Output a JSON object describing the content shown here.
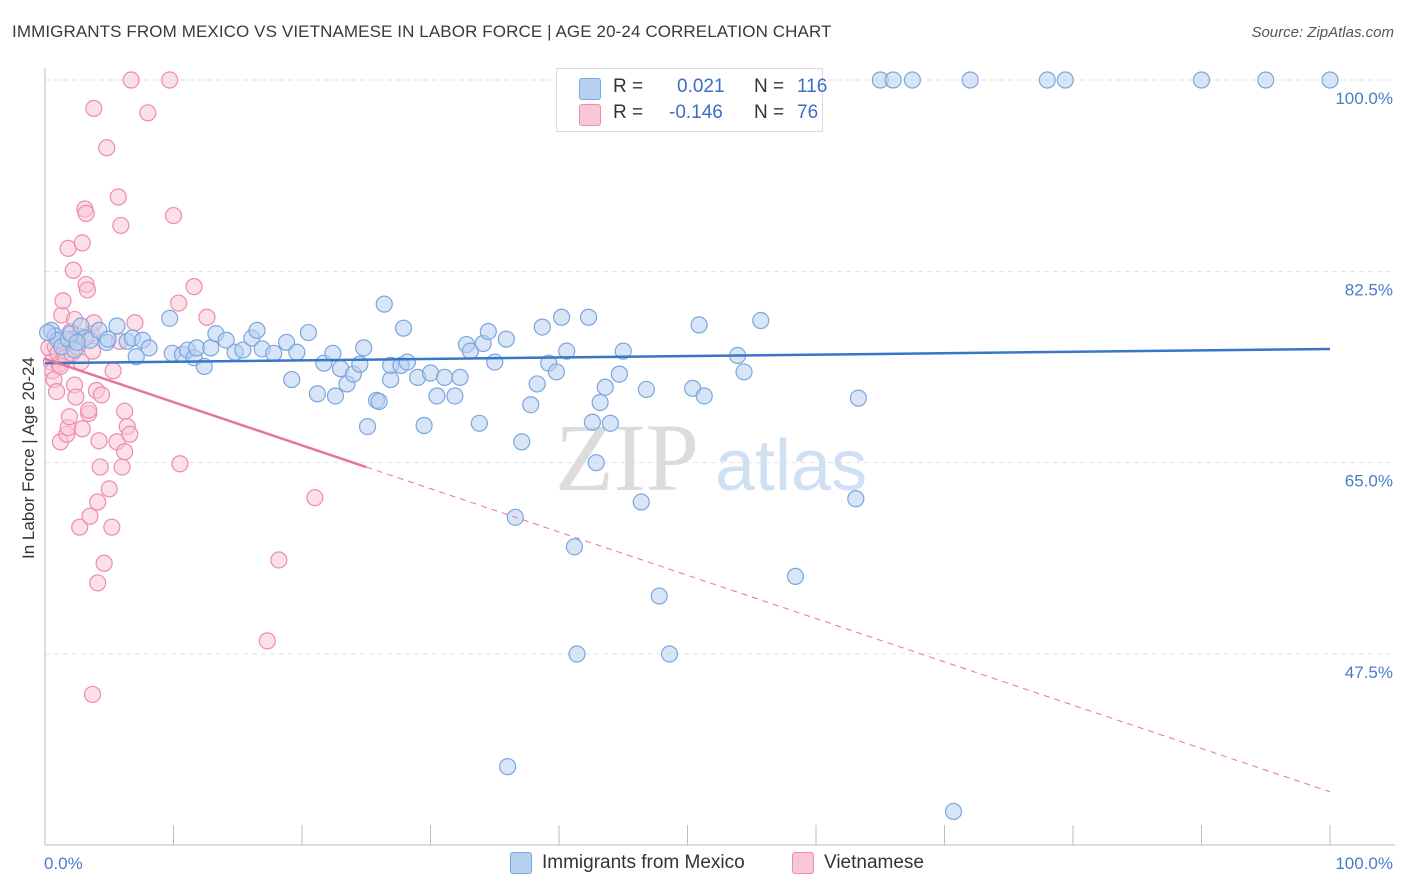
{
  "title": "IMMIGRANTS FROM MEXICO VS VIETNAMESE IN LABOR FORCE | AGE 20-24 CORRELATION CHART",
  "source": "Source: ZipAtlas.com",
  "watermark": {
    "zip": "ZIP",
    "atlas": "atlas"
  },
  "colors": {
    "blue": "#7aa6e0",
    "blue_fill": "#b8d0f0",
    "blue_line": "#3a76c8",
    "pink": "#f08aae",
    "pink_fill": "#f8c6d6",
    "pink_line": "#e8739c",
    "tick": "#4a7cc7"
  },
  "legend": {
    "rows": [
      {
        "r_label": "R =",
        "r_value": "0.021",
        "n_label": "N =",
        "n_value": "116"
      },
      {
        "r_label": "R =",
        "r_value": "-0.146",
        "n_label": "N =",
        "n_value": "76"
      }
    ]
  },
  "bottom_legend": [
    {
      "label": "Immigrants from Mexico"
    },
    {
      "label": "Vietnamese"
    }
  ],
  "chart_data": {
    "type": "scatter",
    "title": "IMMIGRANTS FROM MEXICO VS VIETNAMESE IN LABOR FORCE | AGE 20-24 CORRELATION CHART",
    "xlabel": "",
    "ylabel": "In Labor Force | Age 20-24",
    "xlim": [
      0,
      100
    ],
    "ylim": [
      30,
      101.5
    ],
    "x_tick_labels": [
      "0.0%",
      "100.0%"
    ],
    "y_ticks": [
      47.5,
      65.0,
      82.5,
      100.0
    ],
    "y_tick_labels": [
      "47.5%",
      "65.0%",
      "82.5%",
      "100.0%"
    ],
    "grid": true,
    "series": [
      {
        "name": "Immigrants from Mexico",
        "trend": {
          "x": [
            0,
            100
          ],
          "y": [
            74.1,
            75.4
          ]
        },
        "points": [
          [
            0.5,
            77.1
          ],
          [
            0.8,
            76.6
          ],
          [
            1.0,
            76.2
          ],
          [
            1.3,
            75.6
          ],
          [
            1.8,
            76.3
          ],
          [
            2.0,
            76.8
          ],
          [
            2.3,
            75.3
          ],
          [
            2.8,
            77.5
          ],
          [
            3.1,
            76.4
          ],
          [
            3.5,
            76.2
          ],
          [
            4.2,
            77.1
          ],
          [
            4.8,
            76.0
          ],
          [
            5.6,
            77.5
          ],
          [
            6.4,
            76.1
          ],
          [
            6.8,
            76.4
          ],
          [
            7.1,
            74.7
          ],
          [
            7.6,
            76.2
          ],
          [
            8.1,
            75.5
          ],
          [
            9.7,
            78.2
          ],
          [
            9.9,
            75.0
          ],
          [
            10.7,
            74.9
          ],
          [
            11.1,
            75.3
          ],
          [
            11.6,
            74.6
          ],
          [
            11.8,
            75.5
          ],
          [
            12.4,
            73.8
          ],
          [
            12.9,
            75.5
          ],
          [
            13.3,
            76.8
          ],
          [
            14.1,
            76.2
          ],
          [
            14.8,
            75.1
          ],
          [
            15.4,
            75.3
          ],
          [
            16.1,
            76.4
          ],
          [
            16.5,
            77.1
          ],
          [
            16.9,
            75.4
          ],
          [
            17.8,
            75.0
          ],
          [
            18.8,
            76.0
          ],
          [
            19.2,
            72.6
          ],
          [
            19.6,
            75.1
          ],
          [
            20.5,
            76.9
          ],
          [
            21.2,
            71.3
          ],
          [
            21.7,
            74.1
          ],
          [
            22.4,
            75.0
          ],
          [
            22.6,
            71.1
          ],
          [
            23.0,
            73.6
          ],
          [
            23.5,
            72.2
          ],
          [
            24.0,
            73.1
          ],
          [
            24.5,
            74.0
          ],
          [
            24.8,
            75.5
          ],
          [
            25.1,
            68.3
          ],
          [
            25.8,
            70.7
          ],
          [
            26.0,
            70.6
          ],
          [
            26.4,
            79.5
          ],
          [
            26.9,
            72.6
          ],
          [
            26.9,
            73.9
          ],
          [
            27.7,
            73.9
          ],
          [
            27.9,
            77.3
          ],
          [
            28.2,
            74.2
          ],
          [
            29.0,
            72.8
          ],
          [
            29.5,
            68.4
          ],
          [
            30.0,
            73.2
          ],
          [
            30.5,
            71.1
          ],
          [
            31.1,
            72.8
          ],
          [
            31.9,
            71.1
          ],
          [
            32.3,
            72.8
          ],
          [
            32.8,
            75.8
          ],
          [
            33.1,
            75.2
          ],
          [
            33.8,
            68.6
          ],
          [
            34.1,
            75.9
          ],
          [
            34.5,
            77.0
          ],
          [
            35.0,
            74.2
          ],
          [
            35.9,
            76.3
          ],
          [
            36.6,
            60.0
          ],
          [
            37.1,
            66.9
          ],
          [
            37.8,
            70.3
          ],
          [
            38.3,
            72.2
          ],
          [
            38.7,
            77.4
          ],
          [
            39.2,
            74.1
          ],
          [
            39.8,
            73.3
          ],
          [
            40.2,
            78.3
          ],
          [
            40.6,
            75.2
          ],
          [
            41.2,
            57.3
          ],
          [
            41.4,
            47.5
          ],
          [
            42.3,
            78.3
          ],
          [
            42.6,
            68.7
          ],
          [
            42.9,
            65.0
          ],
          [
            43.2,
            70.5
          ],
          [
            43.6,
            71.9
          ],
          [
            44.0,
            68.6
          ],
          [
            44.7,
            73.1
          ],
          [
            45.0,
            75.2
          ],
          [
            46.4,
            61.4
          ],
          [
            46.8,
            71.7
          ],
          [
            47.8,
            52.8
          ],
          [
            48.6,
            47.5
          ],
          [
            50.4,
            71.8
          ],
          [
            50.9,
            77.6
          ],
          [
            51.3,
            71.1
          ],
          [
            53.9,
            74.8
          ],
          [
            54.4,
            73.3
          ],
          [
            55.7,
            78.0
          ],
          [
            58.4,
            54.6
          ],
          [
            63.1,
            61.7
          ],
          [
            63.3,
            70.9
          ],
          [
            70.7,
            33.1
          ],
          [
            100.0,
            100.0
          ],
          [
            65.0,
            100.0
          ],
          [
            66.0,
            100.0
          ],
          [
            67.5,
            100.0
          ],
          [
            72.0,
            100.0
          ],
          [
            78.0,
            100.0
          ],
          [
            79.4,
            100.0
          ],
          [
            90.0,
            100.0
          ],
          [
            95.0,
            100.0
          ],
          [
            36.0,
            37.2
          ],
          [
            0.2,
            76.9
          ],
          [
            2.5,
            76.0
          ],
          [
            4.9,
            76.3
          ]
        ]
      },
      {
        "name": "Vietnamese",
        "trend": {
          "x": [
            0,
            25
          ],
          "y": [
            74.5,
            64.6
          ]
        },
        "trend_extension": {
          "x": [
            25,
            100
          ],
          "y": [
            64.6,
            34.9
          ]
        },
        "points": [
          [
            0.3,
            75.5
          ],
          [
            0.5,
            74.2
          ],
          [
            0.6,
            73.4
          ],
          [
            0.7,
            72.6
          ],
          [
            0.8,
            75.6
          ],
          [
            0.9,
            71.5
          ],
          [
            1.0,
            75.0
          ],
          [
            1.1,
            74.0
          ],
          [
            1.2,
            73.8
          ],
          [
            1.2,
            66.9
          ],
          [
            1.3,
            78.5
          ],
          [
            1.3,
            76.0
          ],
          [
            1.4,
            79.8
          ],
          [
            1.5,
            75.2
          ],
          [
            1.6,
            74.6
          ],
          [
            1.7,
            67.6
          ],
          [
            1.8,
            68.2
          ],
          [
            1.8,
            84.6
          ],
          [
            1.9,
            69.2
          ],
          [
            2.0,
            77.0
          ],
          [
            2.1,
            76.2
          ],
          [
            2.1,
            75.0
          ],
          [
            2.2,
            82.6
          ],
          [
            2.3,
            78.1
          ],
          [
            2.3,
            72.1
          ],
          [
            2.4,
            71.0
          ],
          [
            2.5,
            75.6
          ],
          [
            2.6,
            76.6
          ],
          [
            2.7,
            59.1
          ],
          [
            2.8,
            74.2
          ],
          [
            2.9,
            68.1
          ],
          [
            2.9,
            85.1
          ],
          [
            3.1,
            88.2
          ],
          [
            3.2,
            87.8
          ],
          [
            3.2,
            81.3
          ],
          [
            3.3,
            80.8
          ],
          [
            3.4,
            69.5
          ],
          [
            3.4,
            69.8
          ],
          [
            3.5,
            60.1
          ],
          [
            3.6,
            76.8
          ],
          [
            3.7,
            75.2
          ],
          [
            3.8,
            77.8
          ],
          [
            3.8,
            97.4
          ],
          [
            4.0,
            71.6
          ],
          [
            4.1,
            54.0
          ],
          [
            4.1,
            61.4
          ],
          [
            4.2,
            67.0
          ],
          [
            4.3,
            64.6
          ],
          [
            4.4,
            71.2
          ],
          [
            4.6,
            55.8
          ],
          [
            4.8,
            93.8
          ],
          [
            5.0,
            62.6
          ],
          [
            5.2,
            59.1
          ],
          [
            5.3,
            73.4
          ],
          [
            5.6,
            66.9
          ],
          [
            5.7,
            89.3
          ],
          [
            5.8,
            76.1
          ],
          [
            5.9,
            86.7
          ],
          [
            6.0,
            64.6
          ],
          [
            6.2,
            69.7
          ],
          [
            6.2,
            66.0
          ],
          [
            6.4,
            68.3
          ],
          [
            6.6,
            67.6
          ],
          [
            6.7,
            100.0
          ],
          [
            7.0,
            77.8
          ],
          [
            8.0,
            97.0
          ],
          [
            9.7,
            100.0
          ],
          [
            10.0,
            87.6
          ],
          [
            10.4,
            79.6
          ],
          [
            10.5,
            64.9
          ],
          [
            11.6,
            81.1
          ],
          [
            12.6,
            78.3
          ],
          [
            17.3,
            48.7
          ],
          [
            18.2,
            56.1
          ],
          [
            21.0,
            61.8
          ],
          [
            3.7,
            43.8
          ]
        ]
      }
    ]
  }
}
